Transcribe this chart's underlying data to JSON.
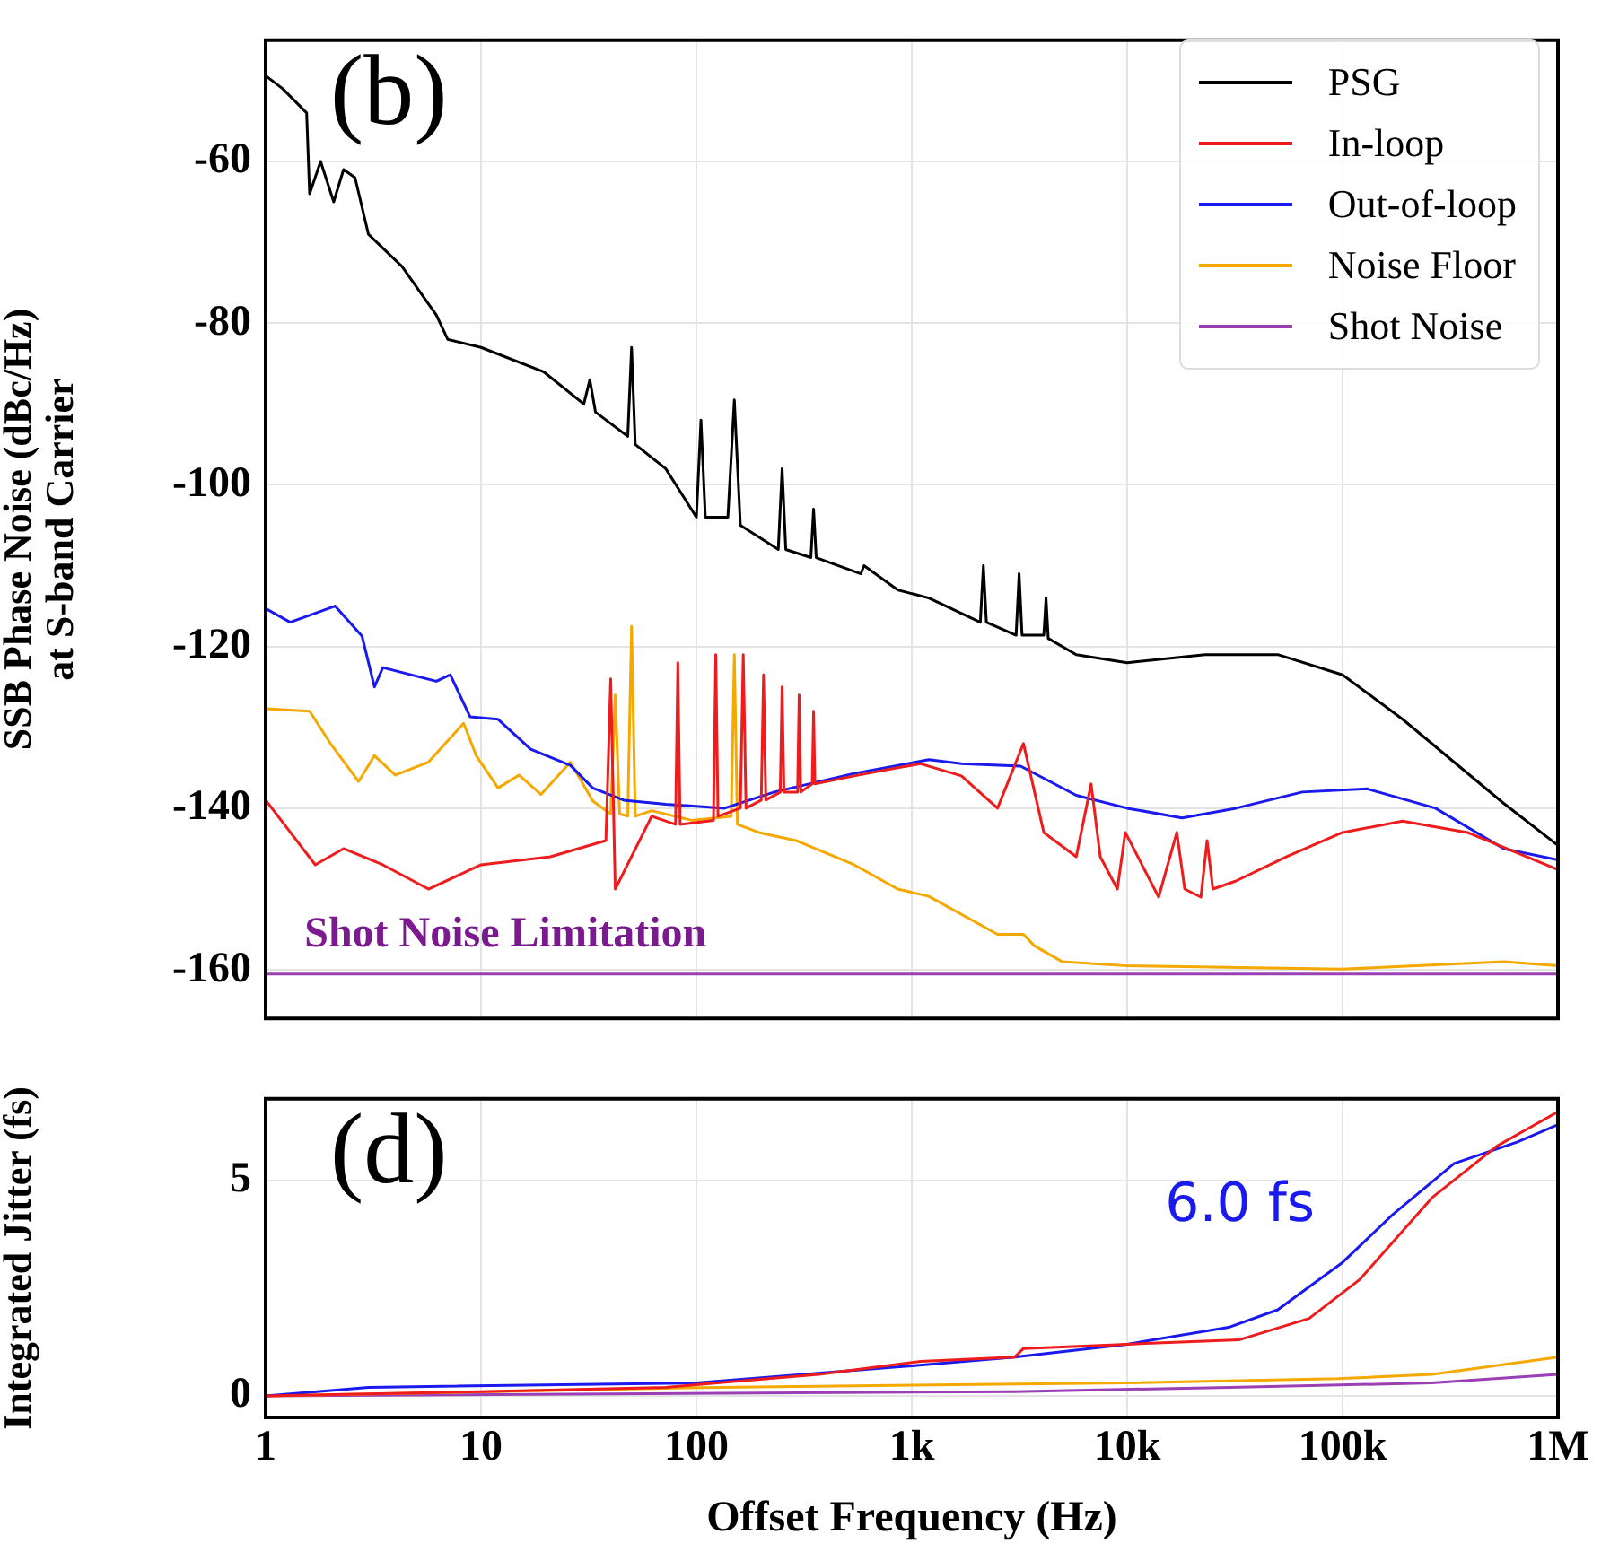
{
  "chart_data": [
    {
      "type": "line",
      "ylabel": "SSB Phase Noise (dBc/Hz)\nat S-band Carrier",
      "log": "x",
      "grid": true,
      "legend": "top right",
      "tick_labels": "y",
      "marker": "none",
      "xlim": [
        1,
        1000000
      ],
      "xticks": [
        1,
        10,
        100,
        1000,
        10000,
        100000,
        1000000
      ],
      "ylim": [
        -166,
        -45
      ],
      "yticks": [
        -160,
        -140,
        -120,
        -100,
        -80,
        -60
      ],
      "annotations": [
        "(b)",
        "Shot Noise Limitation"
      ],
      "series": [
        {
          "name": "PSG",
          "color": "#000000",
          "x": [
            1,
            1.2,
            1.55,
            1.6,
            1.8,
            2.07,
            2.3,
            2.6,
            3,
            4.3,
            6.2,
            7,
            10,
            19.5,
            30,
            32,
            34,
            48,
            50,
            52,
            72,
            100,
            105,
            110,
            140,
            150,
            160,
            240,
            250,
            260,
            340,
            350,
            360,
            580,
            600,
            860,
            1200,
            2080,
            2150,
            2220,
            3050,
            3150,
            3250,
            4100,
            4200,
            4300,
            5800,
            10000,
            23000,
            50000,
            100000,
            190000,
            340000,
            560000,
            1000000
          ],
          "values": [
            -49.4,
            -51,
            -54,
            -64,
            -60,
            -65,
            -61,
            -62,
            -69,
            -73,
            -79,
            -82,
            -83,
            -86,
            -90,
            -87,
            -91,
            -94,
            -83,
            -95,
            -98,
            -104,
            -92,
            -104,
            -104,
            -89.5,
            -105,
            -108,
            -98,
            -108,
            -109,
            -103,
            -109,
            -111,
            -110,
            -113,
            -114,
            -117,
            -110,
            -117,
            -118.6,
            -111,
            -118.6,
            -118.6,
            -114,
            -119,
            -121,
            -122,
            -121,
            -121,
            -123.5,
            -129,
            -134.6,
            -139.4,
            -144.6
          ]
        },
        {
          "name": "In-loop",
          "color": "#ee1c1c",
          "x": [
            1,
            1.7,
            2.3,
            3.5,
            5.7,
            10,
            21,
            38,
            40,
            42,
            62,
            80,
            82,
            84,
            120,
            123,
            126,
            160,
            165,
            170,
            200,
            205,
            210,
            245,
            250,
            255,
            295,
            300,
            305,
            345,
            350,
            355,
            540,
            860,
            1100,
            1700,
            2500,
            3300,
            4100,
            5800,
            6800,
            7500,
            9000,
            9800,
            14000,
            17000,
            18500,
            22000,
            23500,
            25000,
            32000,
            55000,
            100000,
            190000,
            380000,
            1000000
          ],
          "values": [
            -139,
            -147,
            -145,
            -147,
            -150,
            -147,
            -146,
            -144,
            -124,
            -150,
            -141,
            -142,
            -122,
            -142,
            -141.5,
            -121,
            -141,
            -140,
            -121,
            -140,
            -139,
            -123.5,
            -139,
            -138,
            -125,
            -138,
            -138,
            -126,
            -138,
            -137,
            -128,
            -137,
            -136,
            -135,
            -134.5,
            -136,
            -140,
            -132,
            -143,
            -146,
            -137,
            -146,
            -150,
            -143,
            -151,
            -143,
            -150,
            -151,
            -144,
            -150,
            -149,
            -146,
            -143,
            -141.6,
            -143,
            -147.6
          ]
        },
        {
          "name": "Out-of-loop",
          "color": "#1a1aee",
          "x": [
            1,
            1.3,
            2.1,
            2.8,
            3.2,
            3.5,
            6.2,
            7.2,
            8.9,
            12,
            17,
            26,
            33,
            46,
            72,
            135,
            230,
            540,
            1200,
            1700,
            3200,
            5800,
            10000,
            18000,
            32000,
            65000,
            130000,
            270000,
            560000,
            1000000
          ],
          "values": [
            -115.3,
            -117,
            -115,
            -118.7,
            -125,
            -122.6,
            -124.3,
            -123.5,
            -128.7,
            -129,
            -132.7,
            -134.7,
            -137.5,
            -139,
            -139.5,
            -140,
            -138,
            -135.7,
            -134,
            -134.5,
            -134.8,
            -138.4,
            -140,
            -141.2,
            -140,
            -138,
            -137.6,
            -140,
            -145,
            -146.4
          ]
        },
        {
          "name": "Noise Floor",
          "color": "#f5a800",
          "x": [
            1,
            1.6,
            2,
            2.7,
            3.2,
            4,
            5.7,
            8.3,
            9.5,
            12,
            15,
            19,
            26,
            33,
            40,
            42,
            44,
            48,
            50,
            52,
            62,
            95,
            145,
            150,
            155,
            195,
            290,
            540,
            860,
            1200,
            2500,
            3300,
            3700,
            5000,
            10000,
            100000,
            560000,
            1000000
          ],
          "values": [
            -127.7,
            -128,
            -132,
            -136.7,
            -133.5,
            -135.9,
            -134.3,
            -129.5,
            -133.5,
            -137.5,
            -135.9,
            -138.3,
            -134.3,
            -139.1,
            -140.7,
            -126,
            -140.7,
            -141,
            -117.5,
            -141,
            -140.3,
            -141.5,
            -141,
            -121,
            -142,
            -143,
            -144,
            -147,
            -150,
            -150.9,
            -155.6,
            -155.6,
            -157,
            -159,
            -159.5,
            -159.9,
            -159,
            -159.5
          ]
        },
        {
          "name": "Shot Noise",
          "color": "#9b3fb5",
          "x": [
            1,
            1000000
          ],
          "values": [
            -160.5,
            -160.5
          ]
        }
      ]
    },
    {
      "type": "line",
      "xlabel": "Offset Frequency (Hz)",
      "ylabel": "Integrated Jitter (fs)",
      "log": "x",
      "grid": true,
      "marker": "none",
      "xlim": [
        1,
        1000000
      ],
      "xticks": [
        {
          "value": 1,
          "label": "1"
        },
        {
          "value": 10,
          "label": "10"
        },
        {
          "value": 100,
          "label": "100"
        },
        {
          "value": 1000,
          "label": "1k"
        },
        {
          "value": 10000,
          "label": "10k"
        },
        {
          "value": 100000,
          "label": "100k"
        },
        {
          "value": 1000000,
          "label": "1M"
        }
      ],
      "ylim": [
        -0.5,
        6.9
      ],
      "yticks": [
        0,
        5
      ],
      "annotations": [
        "(d)",
        "6.0 fs"
      ],
      "series": [
        {
          "color": "#ee1c1c",
          "x": [
            1,
            10,
            72,
            125,
            370,
            1100,
            3000,
            3300,
            10000,
            33000,
            70000,
            120000,
            260000,
            520000,
            1000000
          ],
          "values": [
            0,
            0.1,
            0.2,
            0.3,
            0.5,
            0.8,
            0.9,
            1.1,
            1.2,
            1.3,
            1.8,
            2.7,
            4.6,
            5.8,
            6.6
          ]
        },
        {
          "color": "#1a1aee",
          "x": [
            1,
            3,
            100,
            1000,
            3000,
            10000,
            30000,
            50000,
            100000,
            170000,
            330000,
            650000,
            1000000
          ],
          "values": [
            0,
            0.2,
            0.3,
            0.7,
            0.9,
            1.2,
            1.6,
            2.0,
            3.1,
            4.2,
            5.4,
            5.9,
            6.3
          ]
        },
        {
          "color": "#f5a800",
          "x": [
            1,
            125,
            10000,
            95000,
            260000,
            1000000
          ],
          "values": [
            0,
            0.2,
            0.3,
            0.4,
            0.5,
            0.9
          ]
        },
        {
          "color": "#9b3fb5",
          "x": [
            1,
            3000,
            30000,
            260000,
            1000000
          ],
          "values": [
            0,
            0.1,
            0.2,
            0.3,
            0.5
          ]
        }
      ]
    }
  ]
}
